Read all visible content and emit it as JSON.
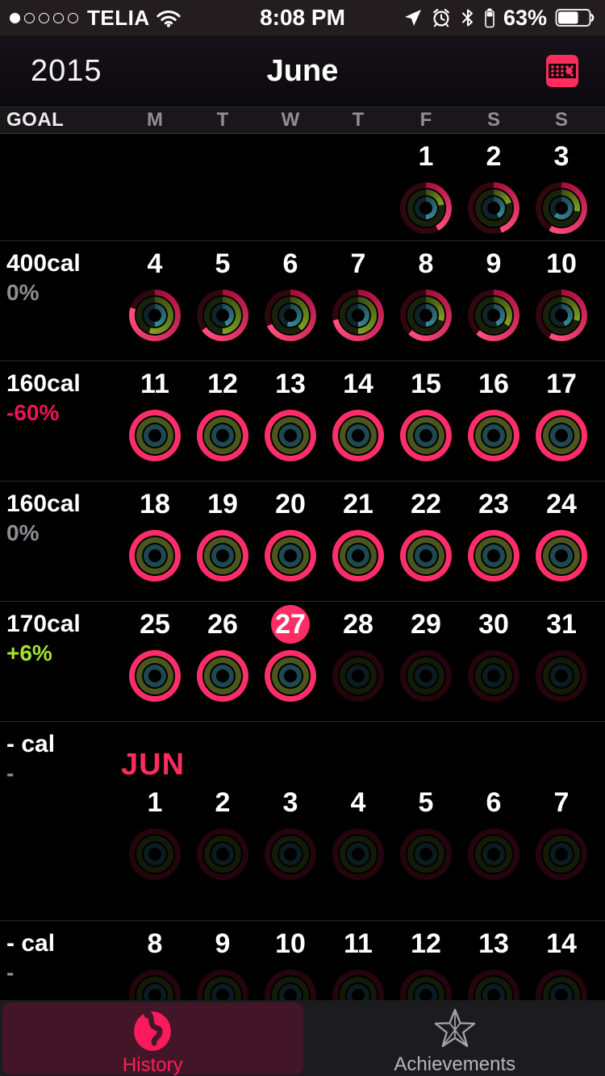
{
  "status_bar": {
    "carrier": "TELIA",
    "time": "8:08 PM",
    "battery_pct": "63%",
    "signal_dots_filled": 1,
    "signal_dots_total": 5,
    "icons": [
      "wifi-icon",
      "location-arrow-icon",
      "alarm-clock-icon",
      "bluetooth-icon",
      "watch-battery-icon",
      "battery-icon"
    ]
  },
  "header": {
    "year": "2015",
    "month": "June",
    "calendar_icon": "calendar-grid-icon"
  },
  "weekday_header": {
    "goal_label": "GOAL",
    "days": [
      "M",
      "T",
      "W",
      "T",
      "F",
      "S",
      "S"
    ]
  },
  "calendar": {
    "rows": [
      {
        "type": "first",
        "goal_cal": "",
        "goal_pct": "",
        "pct_class": "neutral",
        "cells": [
          null,
          null,
          null,
          null,
          {
            "date": "1",
            "variant": "active",
            "move": 0.42,
            "ex": 0.22,
            "stand": 0.5
          },
          {
            "date": "2",
            "variant": "active",
            "move": 0.45,
            "ex": 0.2,
            "stand": 0.42
          },
          {
            "date": "3",
            "variant": "active",
            "move": 0.58,
            "ex": 0.28,
            "stand": 0.62
          }
        ]
      },
      {
        "type": "week",
        "goal_cal": "400cal",
        "goal_pct": "0%",
        "pct_class": "neutral",
        "cells": [
          {
            "date": "4",
            "variant": "active",
            "move": 0.8,
            "ex": 0.55,
            "stand": 0.5
          },
          {
            "date": "5",
            "variant": "active",
            "move": 0.65,
            "ex": 0.5,
            "stand": 0.45
          },
          {
            "date": "6",
            "variant": "active",
            "move": 0.68,
            "ex": 0.4,
            "stand": 0.55
          },
          {
            "date": "7",
            "variant": "active",
            "move": 0.72,
            "ex": 0.5,
            "stand": 0.5
          },
          {
            "date": "8",
            "variant": "active",
            "move": 0.62,
            "ex": 0.3,
            "stand": 0.5
          },
          {
            "date": "9",
            "variant": "active",
            "move": 0.62,
            "ex": 0.35,
            "stand": 0.45
          },
          {
            "date": "10",
            "variant": "active",
            "move": 0.58,
            "ex": 0.3,
            "stand": 0.45
          }
        ]
      },
      {
        "type": "week",
        "goal_cal": "160cal",
        "goal_pct": "-60%",
        "pct_class": "negative",
        "cells": [
          {
            "date": "11",
            "variant": "done",
            "move": 1,
            "ex": 1,
            "stand": 1
          },
          {
            "date": "12",
            "variant": "done",
            "move": 1,
            "ex": 1,
            "stand": 1
          },
          {
            "date": "13",
            "variant": "done",
            "move": 1,
            "ex": 1,
            "stand": 1
          },
          {
            "date": "14",
            "variant": "done",
            "move": 1,
            "ex": 1,
            "stand": 1
          },
          {
            "date": "15",
            "variant": "done",
            "move": 1,
            "ex": 1,
            "stand": 1
          },
          {
            "date": "16",
            "variant": "done",
            "move": 1,
            "ex": 1,
            "stand": 1
          },
          {
            "date": "17",
            "variant": "done",
            "move": 1,
            "ex": 1,
            "stand": 1
          }
        ]
      },
      {
        "type": "week",
        "goal_cal": "160cal",
        "goal_pct": "0%",
        "pct_class": "neutral",
        "cells": [
          {
            "date": "18",
            "variant": "done",
            "move": 1,
            "ex": 1,
            "stand": 1
          },
          {
            "date": "19",
            "variant": "done",
            "move": 1,
            "ex": 1,
            "stand": 1
          },
          {
            "date": "20",
            "variant": "done",
            "move": 1,
            "ex": 1,
            "stand": 1
          },
          {
            "date": "21",
            "variant": "done",
            "move": 1,
            "ex": 1,
            "stand": 1
          },
          {
            "date": "22",
            "variant": "done",
            "move": 1,
            "ex": 1,
            "stand": 1
          },
          {
            "date": "23",
            "variant": "done",
            "move": 1,
            "ex": 1,
            "stand": 1
          },
          {
            "date": "24",
            "variant": "done",
            "move": 1,
            "ex": 1,
            "stand": 1
          }
        ]
      },
      {
        "type": "week",
        "goal_cal": "170cal",
        "goal_pct": "+6%",
        "pct_class": "positive",
        "cells": [
          {
            "date": "25",
            "variant": "done",
            "move": 1,
            "ex": 1,
            "stand": 1
          },
          {
            "date": "26",
            "variant": "done",
            "move": 1,
            "ex": 1,
            "stand": 1
          },
          {
            "date": "27",
            "variant": "done",
            "move": 1,
            "ex": 1,
            "stand": 1,
            "today": true
          },
          {
            "date": "28",
            "variant": "future",
            "move": 0,
            "ex": 0,
            "stand": 0
          },
          {
            "date": "29",
            "variant": "future",
            "move": 0,
            "ex": 0,
            "stand": 0
          },
          {
            "date": "30",
            "variant": "future",
            "move": 0,
            "ex": 0,
            "stand": 0
          },
          {
            "date": "31",
            "variant": "future",
            "move": 0,
            "ex": 0,
            "stand": 0
          }
        ]
      },
      {
        "type": "month",
        "goal_cal": "- cal",
        "goal_pct": "-",
        "pct_class": "neutral",
        "month_label": "JUN",
        "cells": [
          {
            "date": "1",
            "variant": "future",
            "move": 0,
            "ex": 0,
            "stand": 0
          },
          {
            "date": "2",
            "variant": "future",
            "move": 0,
            "ex": 0,
            "stand": 0
          },
          {
            "date": "3",
            "variant": "future",
            "move": 0,
            "ex": 0,
            "stand": 0
          },
          {
            "date": "4",
            "variant": "future",
            "move": 0,
            "ex": 0,
            "stand": 0
          },
          {
            "date": "5",
            "variant": "future",
            "move": 0,
            "ex": 0,
            "stand": 0
          },
          {
            "date": "6",
            "variant": "future",
            "move": 0,
            "ex": 0,
            "stand": 0
          },
          {
            "date": "7",
            "variant": "future",
            "move": 0,
            "ex": 0,
            "stand": 0
          }
        ]
      },
      {
        "type": "clipped",
        "goal_cal": "- cal",
        "goal_pct": "-",
        "pct_class": "neutral",
        "cells": [
          {
            "date": "8",
            "variant": "future",
            "move": 0,
            "ex": 0,
            "stand": 0
          },
          {
            "date": "9",
            "variant": "future",
            "move": 0,
            "ex": 0,
            "stand": 0
          },
          {
            "date": "10",
            "variant": "future",
            "move": 0,
            "ex": 0,
            "stand": 0
          },
          {
            "date": "11",
            "variant": "future",
            "move": 0,
            "ex": 0,
            "stand": 0
          },
          {
            "date": "12",
            "variant": "future",
            "move": 0,
            "ex": 0,
            "stand": 0
          },
          {
            "date": "13",
            "variant": "future",
            "move": 0,
            "ex": 0,
            "stand": 0
          },
          {
            "date": "14",
            "variant": "future",
            "move": 0,
            "ex": 0,
            "stand": 0
          }
        ]
      }
    ]
  },
  "tab_bar": {
    "history_label": "History",
    "achievements_label": "Achievements",
    "selected": "History"
  },
  "colors": {
    "accent_pink": "#fd2e66",
    "move_arc_start": "#a50c3a",
    "move_arc_end": "#ff4f80",
    "move_done": "#fb2e6a",
    "move_track": "#2e070f",
    "ex_arc_start": "#3c4c10",
    "ex_arc_end": "#7fa321",
    "ex_done": "#4a561d",
    "ex_track": "#18220b",
    "stand_arc_start": "#1c4a54",
    "stand_arc_end": "#3b8a97",
    "stand_done": "#1e4950",
    "stand_track": "#0e2429",
    "negative_pct": "#ed1556",
    "positive_pct": "#a5e22e",
    "neutral_pct": "#8e8e93",
    "month_label_pink": "#fb2d5d",
    "today_badge": "#fd2e66",
    "tab_selected_bg": "#431528"
  }
}
